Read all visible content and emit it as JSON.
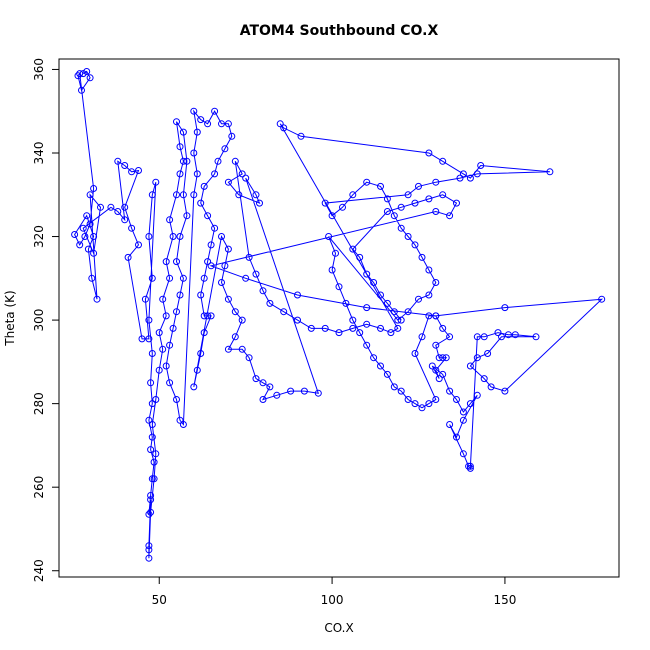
{
  "chart_data": {
    "type": "scatter",
    "title": "ATOM4 Southbound CO.X",
    "xlabel": "CO.X",
    "ylabel": "Theta (K)",
    "xlim": [
      21,
      183
    ],
    "ylim": [
      238.5,
      362.5
    ],
    "x_ticks": [
      50,
      100,
      150
    ],
    "y_ticks": [
      240,
      260,
      280,
      300,
      320,
      340,
      360
    ],
    "grid": false,
    "legend": "none",
    "color": "#0000ff",
    "series": [
      {
        "connected": true,
        "points": [
          [
            28,
            359
          ],
          [
            29,
            359.5
          ],
          [
            30,
            358
          ],
          [
            27.5,
            355
          ],
          [
            26.5,
            358.5
          ],
          [
            27,
            359
          ],
          [
            31,
            331.5
          ],
          [
            30,
            323
          ],
          [
            28.5,
            320
          ],
          [
            27,
            318
          ],
          [
            25.5,
            320.5
          ],
          [
            29,
            325
          ],
          [
            31,
            320
          ],
          [
            29.5,
            317
          ],
          [
            30.5,
            310
          ],
          [
            32,
            305
          ],
          [
            30,
            330
          ],
          [
            33,
            327
          ],
          [
            31,
            316
          ],
          [
            28,
            322
          ],
          [
            36,
            327
          ],
          [
            38,
            326
          ],
          [
            40,
            324
          ],
          [
            38,
            338
          ],
          [
            40,
            337
          ],
          [
            42,
            335.5
          ],
          [
            44,
            335.8
          ],
          [
            40,
            327
          ],
          [
            42,
            322
          ],
          [
            44,
            318
          ],
          [
            41,
            315
          ],
          [
            45,
            295.5
          ],
          [
            47,
            295.5
          ],
          [
            46,
            305
          ],
          [
            48,
            310
          ],
          [
            47,
            320
          ],
          [
            48,
            330
          ],
          [
            49,
            333
          ],
          [
            47,
            300
          ],
          [
            48,
            292
          ],
          [
            47.5,
            285
          ],
          [
            48,
            280
          ],
          [
            47,
            276
          ],
          [
            48,
            272
          ],
          [
            47.5,
            269
          ],
          [
            48.5,
            266
          ],
          [
            48,
            262
          ],
          [
            47.5,
            258
          ],
          [
            47,
            253.5
          ],
          [
            47.5,
            257
          ],
          [
            47,
            246
          ],
          [
            47,
            245
          ],
          [
            47,
            243
          ],
          [
            47.5,
            254
          ],
          [
            48.5,
            262
          ],
          [
            49,
            268
          ],
          [
            48,
            275
          ],
          [
            49,
            281
          ],
          [
            50,
            288
          ],
          [
            51,
            293
          ],
          [
            50,
            297
          ],
          [
            52,
            301
          ],
          [
            51,
            305
          ],
          [
            53,
            310
          ],
          [
            52,
            314
          ],
          [
            54,
            320
          ],
          [
            53,
            324
          ],
          [
            55,
            330
          ],
          [
            56,
            335
          ],
          [
            57,
            338
          ],
          [
            56,
            341.5
          ],
          [
            55,
            347.5
          ],
          [
            57,
            345
          ],
          [
            58,
            338
          ],
          [
            57,
            330
          ],
          [
            58,
            325
          ],
          [
            56,
            320
          ],
          [
            55,
            314
          ],
          [
            57,
            310
          ],
          [
            56,
            306
          ],
          [
            55,
            302
          ],
          [
            54,
            298
          ],
          [
            53,
            294
          ],
          [
            52,
            289
          ],
          [
            53,
            285
          ],
          [
            55,
            281
          ],
          [
            56,
            276
          ],
          [
            57,
            275
          ],
          [
            60,
            330
          ],
          [
            61,
            335
          ],
          [
            60,
            340
          ],
          [
            61,
            345
          ],
          [
            60,
            350
          ],
          [
            62,
            348
          ],
          [
            64,
            347
          ],
          [
            66,
            350
          ],
          [
            68,
            347
          ],
          [
            70,
            347
          ],
          [
            71,
            344
          ],
          [
            69,
            341
          ],
          [
            67,
            338
          ],
          [
            66,
            335
          ],
          [
            63,
            332
          ],
          [
            62,
            328
          ],
          [
            64,
            325
          ],
          [
            66,
            322
          ],
          [
            65,
            318
          ],
          [
            64,
            314
          ],
          [
            63,
            310
          ],
          [
            62,
            306
          ],
          [
            63,
            301
          ],
          [
            64,
            301
          ],
          [
            65,
            301
          ],
          [
            63,
            297
          ],
          [
            62,
            292
          ],
          [
            61,
            288
          ],
          [
            60,
            284
          ],
          [
            68,
            320
          ],
          [
            70,
            317
          ],
          [
            69,
            313
          ],
          [
            68,
            309
          ],
          [
            70,
            305
          ],
          [
            72,
            302
          ],
          [
            74,
            300
          ],
          [
            72,
            296
          ],
          [
            70,
            293
          ],
          [
            74,
            293
          ],
          [
            76,
            291
          ],
          [
            78,
            286
          ],
          [
            80,
            285
          ],
          [
            82,
            284
          ],
          [
            80,
            281
          ],
          [
            84,
            282
          ],
          [
            88,
            283
          ],
          [
            92,
            283
          ],
          [
            96,
            282.5
          ],
          [
            75,
            334
          ],
          [
            78,
            330
          ],
          [
            79,
            328
          ],
          [
            73,
            330
          ],
          [
            70,
            333
          ],
          [
            74,
            335
          ],
          [
            72,
            338
          ],
          [
            76,
            315
          ],
          [
            78,
            311
          ],
          [
            80,
            307
          ],
          [
            82,
            304
          ],
          [
            86,
            302
          ],
          [
            90,
            300
          ],
          [
            94,
            298
          ],
          [
            98,
            298
          ],
          [
            102,
            297
          ],
          [
            106,
            298
          ],
          [
            110,
            299
          ],
          [
            114,
            298
          ],
          [
            117,
            297
          ],
          [
            119,
            298
          ],
          [
            85,
            347
          ],
          [
            86,
            346
          ],
          [
            91,
            344
          ],
          [
            128,
            340
          ],
          [
            132,
            338
          ],
          [
            138,
            335
          ],
          [
            140,
            334
          ],
          [
            143,
            337
          ],
          [
            163,
            335.5
          ],
          [
            142,
            335
          ],
          [
            137,
            334
          ],
          [
            130,
            333
          ],
          [
            125,
            332
          ],
          [
            122,
            330
          ],
          [
            98,
            328
          ],
          [
            100,
            325
          ],
          [
            103,
            327
          ],
          [
            106,
            330
          ],
          [
            110,
            333
          ],
          [
            114,
            332
          ],
          [
            116,
            329
          ],
          [
            118,
            325
          ],
          [
            120,
            322
          ],
          [
            122,
            320
          ],
          [
            124,
            318
          ],
          [
            126,
            315
          ],
          [
            128,
            312
          ],
          [
            130,
            309
          ],
          [
            128,
            306
          ],
          [
            125,
            305
          ],
          [
            122,
            302
          ],
          [
            119,
            300
          ],
          [
            99,
            320
          ],
          [
            101,
            316
          ],
          [
            100,
            312
          ],
          [
            102,
            308
          ],
          [
            104,
            304
          ],
          [
            106,
            300
          ],
          [
            108,
            297
          ],
          [
            110,
            294
          ],
          [
            112,
            291
          ],
          [
            114,
            289
          ],
          [
            116,
            287
          ],
          [
            118,
            284
          ],
          [
            120,
            283
          ],
          [
            122,
            281
          ],
          [
            124,
            280
          ],
          [
            126,
            279
          ],
          [
            128,
            280
          ],
          [
            130,
            281
          ],
          [
            124,
            292
          ],
          [
            126,
            296
          ],
          [
            128,
            301
          ],
          [
            130,
            301
          ],
          [
            132,
            298
          ],
          [
            134,
            296
          ],
          [
            130,
            294
          ],
          [
            131,
            291
          ],
          [
            132,
            291
          ],
          [
            133,
            291
          ],
          [
            130,
            288
          ],
          [
            131,
            286
          ],
          [
            129,
            289
          ],
          [
            132,
            287
          ],
          [
            134,
            283
          ],
          [
            136,
            281
          ],
          [
            138,
            278
          ],
          [
            140,
            280
          ],
          [
            142,
            282
          ],
          [
            138,
            276
          ],
          [
            136,
            272
          ],
          [
            134,
            275
          ],
          [
            138,
            268
          ],
          [
            139.5,
            265
          ],
          [
            140,
            264.5
          ],
          [
            140,
            265
          ],
          [
            142,
            296
          ],
          [
            144,
            296
          ],
          [
            148,
            297
          ],
          [
            151,
            296.5
          ],
          [
            153,
            296.5
          ],
          [
            159,
            296
          ],
          [
            149,
            296
          ],
          [
            145,
            292
          ],
          [
            142,
            291
          ],
          [
            140,
            289
          ],
          [
            144,
            286
          ],
          [
            146,
            284
          ],
          [
            150,
            283
          ],
          [
            178,
            305
          ],
          [
            150,
            303
          ],
          [
            130,
            301
          ],
          [
            110,
            303
          ],
          [
            90,
            306
          ],
          [
            75,
            310
          ],
          [
            65,
            313
          ],
          [
            130,
            326
          ],
          [
            134,
            325
          ],
          [
            136,
            328
          ],
          [
            132,
            330
          ],
          [
            128,
            329
          ],
          [
            124,
            328
          ],
          [
            120,
            327
          ],
          [
            116,
            326
          ],
          [
            106,
            317
          ],
          [
            108,
            315
          ],
          [
            110,
            311
          ],
          [
            112,
            309
          ],
          [
            114,
            306
          ],
          [
            116,
            304
          ],
          [
            118,
            302
          ],
          [
            120,
            300
          ]
        ]
      }
    ]
  }
}
